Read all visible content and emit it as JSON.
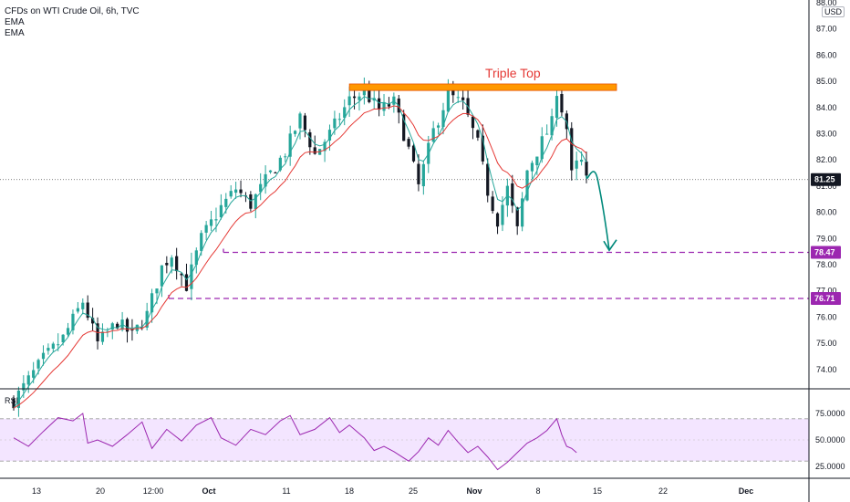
{
  "legend": {
    "title": "CFDs on WTI Crude Oil, 6h, TVC",
    "indicator_1": "EMA",
    "indicator_2": "EMA"
  },
  "currency_badge": "USD",
  "rsi_label": "RSI",
  "colors": {
    "up": "#26a69a",
    "down": "#131722",
    "ema_fast": "#26a69a",
    "ema_slow": "#e53935",
    "level": "#9c27b0",
    "rsi_line": "#9c27b0",
    "rsi_band": "#f3e5ff",
    "resistance": "#ff9800",
    "projection": "#00897b",
    "annotation_text": "#e53935",
    "last_price_tag": "#131722"
  },
  "chart_data": {
    "type": "candlestick",
    "price_axis": {
      "ticks": [
        "88.00",
        "87.00",
        "86.00",
        "85.00",
        "84.00",
        "83.00",
        "82.00",
        "81.00",
        "80.00",
        "79.00",
        "78.00",
        "77.00",
        "76.00",
        "75.00",
        "74.00"
      ],
      "range": [
        73.3,
        88.4
      ]
    },
    "time_axis": {
      "ticks": [
        "13",
        "20",
        "12:00",
        "Oct",
        "11",
        "18",
        "25",
        "Nov",
        "8",
        "15",
        "22",
        "Dec"
      ]
    },
    "last_price": "81.25",
    "levels": [
      {
        "value": 78.47,
        "label": "78.47"
      },
      {
        "value": 76.71,
        "label": "76.71"
      }
    ],
    "annotation": {
      "text": "Triple Top",
      "zone": [
        84.65,
        84.9
      ]
    },
    "price_path": [
      [
        0,
        72.8
      ],
      [
        6,
        74.4
      ],
      [
        10,
        75.2
      ],
      [
        14,
        76.6
      ],
      [
        17,
        75.0
      ],
      [
        21,
        75.8
      ],
      [
        24,
        75.3
      ],
      [
        27,
        76.1
      ],
      [
        30,
        77.9
      ],
      [
        32,
        78.4
      ],
      [
        35,
        77.2
      ],
      [
        38,
        79.0
      ],
      [
        42,
        80.2
      ],
      [
        45,
        80.9
      ],
      [
        48,
        80.3
      ],
      [
        51,
        81.2
      ],
      [
        55,
        82.3
      ],
      [
        58,
        83.6
      ],
      [
        61,
        82.2
      ],
      [
        64,
        83.0
      ],
      [
        68,
        84.3
      ],
      [
        71,
        84.6
      ],
      [
        74,
        83.9
      ],
      [
        77,
        84.2
      ],
      [
        80,
        82.4
      ],
      [
        82,
        81.0
      ],
      [
        85,
        83.1
      ],
      [
        88,
        84.5
      ],
      [
        91,
        84.1
      ],
      [
        94,
        82.6
      ],
      [
        96,
        80.8
      ],
      [
        98,
        79.7
      ],
      [
        100,
        80.9
      ],
      [
        102,
        79.3
      ],
      [
        104,
        81.6
      ],
      [
        107,
        82.7
      ],
      [
        109,
        83.4
      ],
      [
        110,
        84.7
      ],
      [
        112,
        83.2
      ],
      [
        113,
        81.4
      ],
      [
        114,
        81.8
      ],
      [
        115,
        81.9
      ],
      [
        116,
        81.2
      ]
    ],
    "projection": [
      [
        81.4,
        81.0
      ],
      [
        81.5,
        80.1
      ],
      [
        80.2,
        79.2
      ],
      [
        78.9,
        78.6
      ]
    ],
    "rsi": {
      "ticks": [
        "75.0000",
        "50.0000",
        "25.0000"
      ],
      "band": [
        30,
        70
      ],
      "path": [
        [
          0,
          52
        ],
        [
          3,
          44
        ],
        [
          6,
          58
        ],
        [
          9,
          71
        ],
        [
          12,
          68
        ],
        [
          14,
          75
        ],
        [
          15,
          47
        ],
        [
          17,
          50
        ],
        [
          20,
          44
        ],
        [
          23,
          55
        ],
        [
          26,
          67
        ],
        [
          28,
          42
        ],
        [
          31,
          60
        ],
        [
          34,
          49
        ],
        [
          37,
          64
        ],
        [
          40,
          71
        ],
        [
          42,
          52
        ],
        [
          45,
          45
        ],
        [
          48,
          60
        ],
        [
          51,
          55
        ],
        [
          54,
          68
        ],
        [
          56,
          73
        ],
        [
          58,
          55
        ],
        [
          61,
          60
        ],
        [
          64,
          71
        ],
        [
          66,
          57
        ],
        [
          68,
          64
        ],
        [
          71,
          52
        ],
        [
          73,
          40
        ],
        [
          75,
          44
        ],
        [
          77,
          39
        ],
        [
          80,
          30
        ],
        [
          82,
          39
        ],
        [
          84,
          52
        ],
        [
          86,
          45
        ],
        [
          88,
          59
        ],
        [
          90,
          48
        ],
        [
          92,
          38
        ],
        [
          94,
          44
        ],
        [
          96,
          34
        ],
        [
          98,
          22
        ],
        [
          100,
          29
        ],
        [
          102,
          38
        ],
        [
          104,
          47
        ],
        [
          106,
          52
        ],
        [
          108,
          59
        ],
        [
          110,
          70
        ],
        [
          111,
          55
        ],
        [
          112,
          44
        ],
        [
          113,
          42
        ],
        [
          114,
          38
        ]
      ]
    }
  }
}
